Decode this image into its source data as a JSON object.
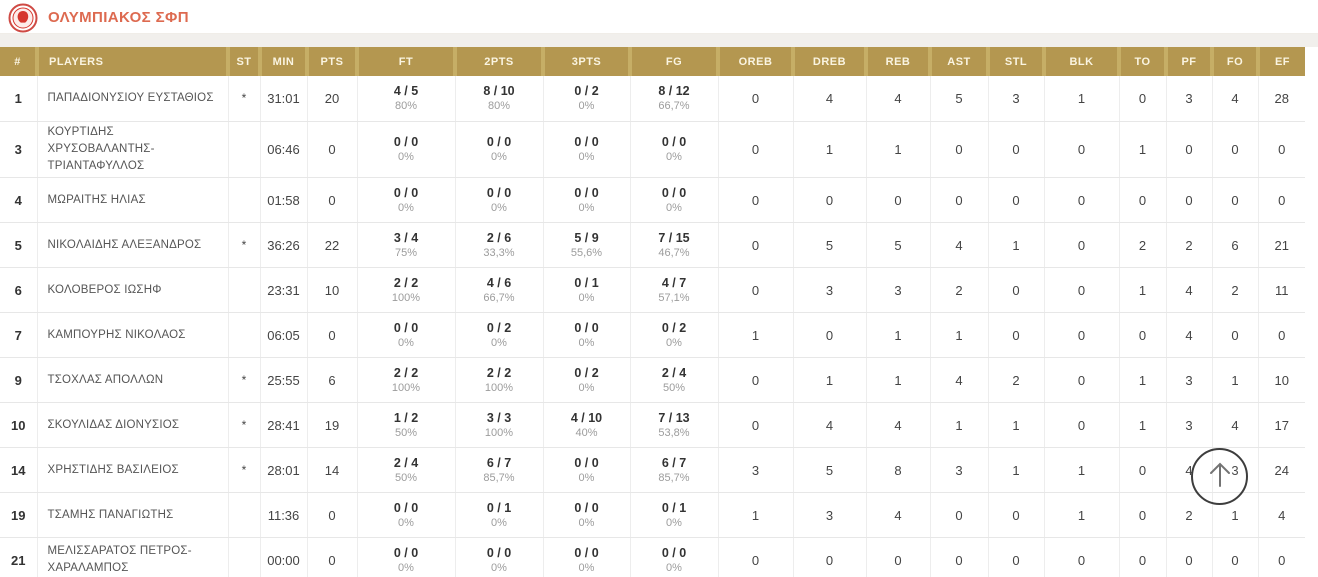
{
  "header": {
    "team_name": "ΟΛΥΜΠΙΑΚΟΣ ΣΦΠ",
    "logo_color": "#d6362e"
  },
  "colors": {
    "table_header_bg": "#b49750",
    "table_header_separator": "#c6ae66",
    "team_name_color": "#dd6a50"
  },
  "table": {
    "columns": [
      {
        "id": "num",
        "label": "#",
        "type": "plain"
      },
      {
        "id": "name",
        "label": "Players",
        "type": "name"
      },
      {
        "id": "st",
        "label": "ST",
        "type": "plain"
      },
      {
        "id": "min",
        "label": "MIN",
        "type": "plain"
      },
      {
        "id": "pts",
        "label": "PTS",
        "type": "plain"
      },
      {
        "id": "ft",
        "label": "FT",
        "type": "shoot"
      },
      {
        "id": "p2",
        "label": "2PTS",
        "type": "shoot"
      },
      {
        "id": "p3",
        "label": "3PTS",
        "type": "shoot"
      },
      {
        "id": "fg",
        "label": "FG",
        "type": "shoot"
      },
      {
        "id": "oreb",
        "label": "OREB",
        "type": "plain"
      },
      {
        "id": "dreb",
        "label": "DREB",
        "type": "plain"
      },
      {
        "id": "reb",
        "label": "REB",
        "type": "plain"
      },
      {
        "id": "ast",
        "label": "AST",
        "type": "plain"
      },
      {
        "id": "stl",
        "label": "STL",
        "type": "plain"
      },
      {
        "id": "blk",
        "label": "BLK",
        "type": "plain"
      },
      {
        "id": "to",
        "label": "TO",
        "type": "plain"
      },
      {
        "id": "pf",
        "label": "PF",
        "type": "plain"
      },
      {
        "id": "fo",
        "label": "FO",
        "type": "plain"
      },
      {
        "id": "ef",
        "label": "EF",
        "type": "plain"
      }
    ],
    "players": [
      {
        "num": "1",
        "name": "ΠΑΠΑΔΙΟΝΥΣΙΟΥ ΕΥΣΤΑΘΙΟΣ",
        "st": "*",
        "min": "31:01",
        "pts": "20",
        "ft": {
          "m": "4 / 5",
          "p": "80%"
        },
        "p2": {
          "m": "8 / 10",
          "p": "80%"
        },
        "p3": {
          "m": "0 / 2",
          "p": "0%"
        },
        "fg": {
          "m": "8 / 12",
          "p": "66,7%"
        },
        "oreb": "0",
        "dreb": "4",
        "reb": "4",
        "ast": "5",
        "stl": "3",
        "blk": "1",
        "to": "0",
        "pf": "3",
        "fo": "4",
        "ef": "28"
      },
      {
        "num": "3",
        "name": "ΚΟΥΡΤΙΔΗΣ ΧΡΥΣΟΒΑΛΑΝΤΗΣ-ΤΡΙΑΝΤΑΦΥΛΛΟΣ",
        "st": "",
        "min": "06:46",
        "pts": "0",
        "ft": {
          "m": "0 / 0",
          "p": "0%"
        },
        "p2": {
          "m": "0 / 0",
          "p": "0%"
        },
        "p3": {
          "m": "0 / 0",
          "p": "0%"
        },
        "fg": {
          "m": "0 / 0",
          "p": "0%"
        },
        "oreb": "0",
        "dreb": "1",
        "reb": "1",
        "ast": "0",
        "stl": "0",
        "blk": "0",
        "to": "1",
        "pf": "0",
        "fo": "0",
        "ef": "0"
      },
      {
        "num": "4",
        "name": "ΜΩΡΑΙΤΗΣ ΗΛΙΑΣ",
        "st": "",
        "min": "01:58",
        "pts": "0",
        "ft": {
          "m": "0 / 0",
          "p": "0%"
        },
        "p2": {
          "m": "0 / 0",
          "p": "0%"
        },
        "p3": {
          "m": "0 / 0",
          "p": "0%"
        },
        "fg": {
          "m": "0 / 0",
          "p": "0%"
        },
        "oreb": "0",
        "dreb": "0",
        "reb": "0",
        "ast": "0",
        "stl": "0",
        "blk": "0",
        "to": "0",
        "pf": "0",
        "fo": "0",
        "ef": "0"
      },
      {
        "num": "5",
        "name": "ΝΙΚΟΛΑΙΔΗΣ ΑΛΕΞΑΝΔΡΟΣ",
        "st": "*",
        "min": "36:26",
        "pts": "22",
        "ft": {
          "m": "3 / 4",
          "p": "75%"
        },
        "p2": {
          "m": "2 / 6",
          "p": "33,3%"
        },
        "p3": {
          "m": "5 / 9",
          "p": "55,6%"
        },
        "fg": {
          "m": "7 / 15",
          "p": "46,7%"
        },
        "oreb": "0",
        "dreb": "5",
        "reb": "5",
        "ast": "4",
        "stl": "1",
        "blk": "0",
        "to": "2",
        "pf": "2",
        "fo": "6",
        "ef": "21"
      },
      {
        "num": "6",
        "name": "ΚΟΛΟΒΕΡΟΣ ΙΩΣΗΦ",
        "st": "",
        "min": "23:31",
        "pts": "10",
        "ft": {
          "m": "2 / 2",
          "p": "100%"
        },
        "p2": {
          "m": "4 / 6",
          "p": "66,7%"
        },
        "p3": {
          "m": "0 / 1",
          "p": "0%"
        },
        "fg": {
          "m": "4 / 7",
          "p": "57,1%"
        },
        "oreb": "0",
        "dreb": "3",
        "reb": "3",
        "ast": "2",
        "stl": "0",
        "blk": "0",
        "to": "1",
        "pf": "4",
        "fo": "2",
        "ef": "11"
      },
      {
        "num": "7",
        "name": "ΚΑΜΠΟΥΡΗΣ ΝΙΚΟΛΑΟΣ",
        "st": "",
        "min": "06:05",
        "pts": "0",
        "ft": {
          "m": "0 / 0",
          "p": "0%"
        },
        "p2": {
          "m": "0 / 2",
          "p": "0%"
        },
        "p3": {
          "m": "0 / 0",
          "p": "0%"
        },
        "fg": {
          "m": "0 / 2",
          "p": "0%"
        },
        "oreb": "1",
        "dreb": "0",
        "reb": "1",
        "ast": "1",
        "stl": "0",
        "blk": "0",
        "to": "0",
        "pf": "4",
        "fo": "0",
        "ef": "0"
      },
      {
        "num": "9",
        "name": "ΤΣΟΧΛΑΣ ΑΠΟΛΛΩΝ",
        "st": "*",
        "min": "25:55",
        "pts": "6",
        "ft": {
          "m": "2 / 2",
          "p": "100%"
        },
        "p2": {
          "m": "2 / 2",
          "p": "100%"
        },
        "p3": {
          "m": "0 / 2",
          "p": "0%"
        },
        "fg": {
          "m": "2 / 4",
          "p": "50%"
        },
        "oreb": "0",
        "dreb": "1",
        "reb": "1",
        "ast": "4",
        "stl": "2",
        "blk": "0",
        "to": "1",
        "pf": "3",
        "fo": "1",
        "ef": "10"
      },
      {
        "num": "10",
        "name": "ΣΚΟΥΛΙΔΑΣ ΔΙΟΝΥΣΙΟΣ",
        "st": "*",
        "min": "28:41",
        "pts": "19",
        "ft": {
          "m": "1 / 2",
          "p": "50%"
        },
        "p2": {
          "m": "3 / 3",
          "p": "100%"
        },
        "p3": {
          "m": "4 / 10",
          "p": "40%"
        },
        "fg": {
          "m": "7 / 13",
          "p": "53,8%"
        },
        "oreb": "0",
        "dreb": "4",
        "reb": "4",
        "ast": "1",
        "stl": "1",
        "blk": "0",
        "to": "1",
        "pf": "3",
        "fo": "4",
        "ef": "17"
      },
      {
        "num": "14",
        "name": "ΧΡΗΣΤΙΔΗΣ ΒΑΣΙΛΕΙΟΣ",
        "st": "*",
        "min": "28:01",
        "pts": "14",
        "ft": {
          "m": "2 / 4",
          "p": "50%"
        },
        "p2": {
          "m": "6 / 7",
          "p": "85,7%"
        },
        "p3": {
          "m": "0 / 0",
          "p": "0%"
        },
        "fg": {
          "m": "6 / 7",
          "p": "85,7%"
        },
        "oreb": "3",
        "dreb": "5",
        "reb": "8",
        "ast": "3",
        "stl": "1",
        "blk": "1",
        "to": "0",
        "pf": "4",
        "fo": "3",
        "ef": "24"
      },
      {
        "num": "19",
        "name": "ΤΣΑΜΗΣ ΠΑΝΑΓΙΩΤΗΣ",
        "st": "",
        "min": "11:36",
        "pts": "0",
        "ft": {
          "m": "0 / 0",
          "p": "0%"
        },
        "p2": {
          "m": "0 / 1",
          "p": "0%"
        },
        "p3": {
          "m": "0 / 0",
          "p": "0%"
        },
        "fg": {
          "m": "0 / 1",
          "p": "0%"
        },
        "oreb": "1",
        "dreb": "3",
        "reb": "4",
        "ast": "0",
        "stl": "0",
        "blk": "1",
        "to": "0",
        "pf": "2",
        "fo": "1",
        "ef": "4"
      },
      {
        "num": "21",
        "name": "ΜΕΛΙΣΣΑΡΑΤΟΣ ΠΕΤΡΟΣ-ΧΑΡΑΛΑΜΠΟΣ",
        "st": "",
        "min": "00:00",
        "pts": "0",
        "ft": {
          "m": "0 / 0",
          "p": "0%"
        },
        "p2": {
          "m": "0 / 0",
          "p": "0%"
        },
        "p3": {
          "m": "0 / 0",
          "p": "0%"
        },
        "fg": {
          "m": "0 / 0",
          "p": "0%"
        },
        "oreb": "0",
        "dreb": "0",
        "reb": "0",
        "ast": "0",
        "stl": "0",
        "blk": "0",
        "to": "0",
        "pf": "0",
        "fo": "0",
        "ef": "0"
      }
    ]
  }
}
